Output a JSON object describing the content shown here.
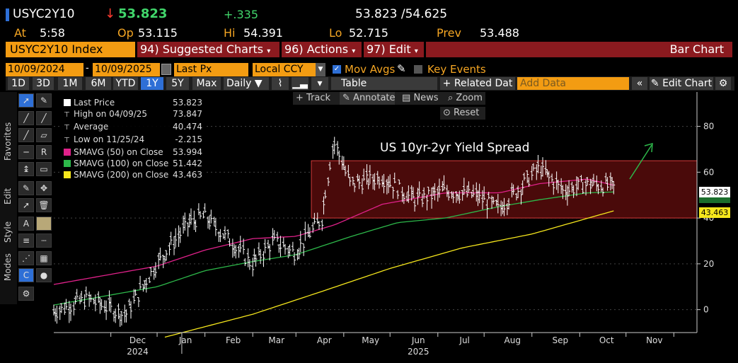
{
  "quote": {
    "ticker": "USYC2Y10",
    "last": "53.823",
    "change": "+.335",
    "bid_ask": "53.823 /54.625",
    "at_label": "At",
    "at_time": "5:58",
    "op_label": "Op",
    "op": "53.115",
    "hi_label": "Hi",
    "hi": "54.391",
    "lo_label": "Lo",
    "lo": "52.715",
    "prev_label": "Prev",
    "prev": "53.488"
  },
  "menu": {
    "security": "USYC2Y10 Index",
    "suggested": "94) Suggested Charts",
    "actions": "96) Actions",
    "edit": "97) Edit",
    "title": "Bar Chart"
  },
  "controls": {
    "start_date": "10/09/2024",
    "end_date": "10/09/2025",
    "field": "Last Px",
    "currency": "Local CCY",
    "mov_avgs": "Mov Avgs",
    "key_events": "Key Events",
    "periods": [
      "1D",
      "3D",
      "1M",
      "6M",
      "YTD",
      "1Y",
      "5Y",
      "Max"
    ],
    "selected_period": "1Y",
    "frequency": "Daily",
    "table": "Table",
    "related": "+ Related Dat",
    "add_data_placeholder": "Add Data",
    "edit_chart": "Edit Chart",
    "track": "Track",
    "annotate": "Annotate",
    "news": "News",
    "zoom": "Zoom",
    "reset": "Reset"
  },
  "sidebar": {
    "tabs": [
      "Favorites",
      "Edit",
      "Style",
      "Modes"
    ]
  },
  "legend": [
    {
      "label": "Last Price",
      "value": "53.823",
      "color": "#ffffff",
      "kind": "square"
    },
    {
      "label": "High on 04/09/25",
      "value": "73.847",
      "color": "#cccccc",
      "kind": "text"
    },
    {
      "label": "Average",
      "value": "40.474",
      "color": "#cccccc",
      "kind": "text"
    },
    {
      "label": "Low on 11/25/24",
      "value": "-2.215",
      "color": "#cccccc",
      "kind": "text"
    },
    {
      "label": "SMAVG (50)  on Close",
      "value": "53.994",
      "color": "#e0218a",
      "kind": "square"
    },
    {
      "label": "SMAVG (100)  on Close",
      "value": "51.442",
      "color": "#2db84a",
      "kind": "square"
    },
    {
      "label": "SMAVG (200)  on Close",
      "value": "43.463",
      "color": "#f5e61c",
      "kind": "square"
    }
  ],
  "chart_data": {
    "type": "bar",
    "title": "US 10yr-2yr Yield Spread",
    "ylim": [
      -10,
      95
    ],
    "yticks": [
      0,
      20,
      40,
      60,
      80
    ],
    "xlabels": [
      "Dec",
      "Jan",
      "Feb",
      "Mar",
      "Apr",
      "May",
      "Jun",
      "Jul",
      "Aug",
      "Sep",
      "Oct",
      "Nov"
    ],
    "year_labels": [
      "2024",
      "2025"
    ],
    "price_badge": "53.823",
    "sma200_badge": "43.463",
    "highlight_range": [
      40,
      65
    ],
    "series": [
      {
        "name": "Last Price",
        "color": "#ffffff",
        "x": [
          "2024-10-09",
          "2024-10-31",
          "2024-11-25",
          "2024-12-15",
          "2025-01-05",
          "2025-01-15",
          "2025-02-01",
          "2025-02-15",
          "2025-03-01",
          "2025-03-15",
          "2025-04-01",
          "2025-04-09",
          "2025-04-20",
          "2025-05-10",
          "2025-06-01",
          "2025-06-20",
          "2025-07-10",
          "2025-07-25",
          "2025-08-10",
          "2025-08-20",
          "2025-09-05",
          "2025-09-20",
          "2025-10-09"
        ],
        "values": [
          -1,
          5,
          -2.2,
          20,
          38,
          41,
          30,
          20,
          30,
          25,
          40,
          73.8,
          55,
          58,
          48,
          52,
          50,
          44,
          55,
          62,
          52,
          55,
          53.8
        ]
      },
      {
        "name": "SMAVG (50)",
        "color": "#e0218a",
        "x": [
          "2024-10-09",
          "2024-12-15",
          "2025-01-15",
          "2025-02-15",
          "2025-03-15",
          "2025-04-09",
          "2025-05-10",
          "2025-06-20",
          "2025-07-25",
          "2025-08-20",
          "2025-09-20",
          "2025-10-09"
        ],
        "values": [
          11,
          19,
          26,
          31,
          32,
          37,
          46,
          51,
          51,
          55,
          57,
          54
        ]
      },
      {
        "name": "SMAVG (100)",
        "color": "#2db84a",
        "x": [
          "2024-10-09",
          "2024-12-15",
          "2025-01-15",
          "2025-02-15",
          "2025-03-15",
          "2025-04-20",
          "2025-05-20",
          "2025-06-20",
          "2025-07-25",
          "2025-08-20",
          "2025-09-20",
          "2025-10-09"
        ],
        "values": [
          2,
          10,
          17,
          21,
          24,
          32,
          38,
          40,
          45,
          48,
          51,
          51.4
        ]
      },
      {
        "name": "SMAVG (200)",
        "color": "#f5e61c",
        "x": [
          "2024-12-20",
          "2025-02-15",
          "2025-04-01",
          "2025-05-15",
          "2025-07-01",
          "2025-08-15",
          "2025-10-09"
        ],
        "values": [
          -12,
          -2,
          8,
          18,
          27,
          33,
          43.5
        ]
      }
    ]
  }
}
